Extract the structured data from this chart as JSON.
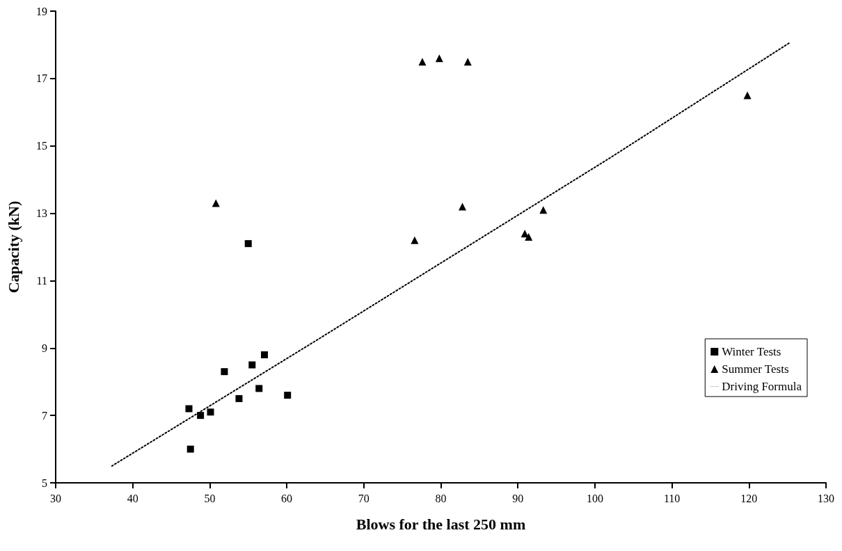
{
  "chart_data": {
    "type": "scatter",
    "xlabel": "Blows for the last 250 mm",
    "ylabel": "Capacity (kN)",
    "xlim": [
      30,
      130
    ],
    "xticks": [
      30,
      40,
      50,
      60,
      70,
      80,
      90,
      100,
      110,
      120,
      130
    ],
    "ylim": [
      5,
      19
    ],
    "yticks": [
      5,
      7,
      9,
      11,
      13,
      15,
      17,
      19
    ],
    "grid": false,
    "legend": "bottom right",
    "series": [
      {
        "name": "Winter Tests",
        "marker": "square",
        "color": "#000000",
        "x": [
          55.0,
          57.1,
          55.5,
          51.9,
          56.4,
          60.1,
          53.8,
          47.3,
          50.1,
          48.8,
          47.5
        ],
        "values": [
          12.1,
          8.8,
          8.5,
          8.3,
          7.8,
          7.6,
          7.5,
          7.2,
          7.1,
          7.0,
          6.0
        ]
      },
      {
        "name": "Summer Tests",
        "marker": "triangle",
        "color": "#000000",
        "x": [
          50.8,
          76.6,
          77.6,
          79.8,
          82.8,
          83.5,
          90.9,
          91.4,
          93.3,
          119.8
        ],
        "values": [
          13.3,
          12.2,
          17.5,
          17.6,
          13.2,
          17.5,
          12.4,
          12.3,
          13.1,
          16.5
        ]
      },
      {
        "name": "Driving Formula",
        "type": "line",
        "marker": "none",
        "line_style": "dotted",
        "color": "#000000",
        "x": [
          37.3,
          64.0,
          102.0,
          125.2
        ],
        "values": [
          5.5,
          9.25,
          14.65,
          18.05
        ]
      }
    ]
  }
}
